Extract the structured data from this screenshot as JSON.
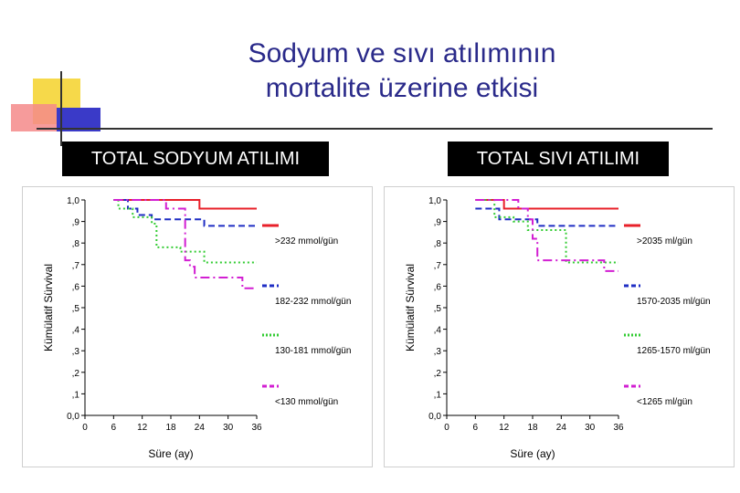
{
  "title": {
    "line1": "Sodyum ve sıvı atılımının",
    "line2": "mortalite üzerine etkisi"
  },
  "colors": {
    "title": "#2a2a8a",
    "series": [
      "#e8202a",
      "#1f2ec4",
      "#33cc33",
      "#d21fd2"
    ]
  },
  "chart_data": [
    {
      "type": "line",
      "panel_label": "TOTAL SODYUM ATILIMI",
      "xlabel": "Süre (ay)",
      "ylabel": "Kümülatif Sürvival",
      "xlim": [
        0,
        36
      ],
      "ylim": [
        0,
        1
      ],
      "x_ticks": [
        "0",
        "6",
        "12",
        "18",
        "24",
        "30",
        "36"
      ],
      "y_ticks": [
        "0,0",
        ",1",
        ",2",
        ",3",
        ",4",
        ",5",
        ",6",
        ",7",
        ",8",
        ",9",
        "1,0"
      ],
      "grid": false,
      "legend_position": "right",
      "series": [
        {
          "name": ">232 mmol/gün",
          "color": "#e8202a",
          "dash": "solid",
          "x": [
            6,
            24,
            36
          ],
          "y": [
            1.0,
            0.96,
            0.96
          ]
        },
        {
          "name": "182-232 mmol/gün",
          "color": "#1f2ec4",
          "dash": "dashed",
          "x": [
            6,
            9,
            11,
            14,
            22,
            25,
            36
          ],
          "y": [
            1.0,
            0.96,
            0.93,
            0.91,
            0.91,
            0.88,
            0.88
          ]
        },
        {
          "name": "130-181 mmol/gün",
          "color": "#33cc33",
          "dash": "dotted",
          "x": [
            6,
            7,
            10,
            14,
            15,
            20,
            25,
            36
          ],
          "y": [
            1.0,
            0.96,
            0.92,
            0.89,
            0.78,
            0.76,
            0.71,
            0.71
          ]
        },
        {
          "name": "<130 mmol/gün",
          "color": "#d21fd2",
          "dash": "dashdot",
          "x": [
            6,
            11,
            17,
            21,
            22,
            23,
            33,
            36
          ],
          "y": [
            1.0,
            1.0,
            0.96,
            0.72,
            0.69,
            0.64,
            0.59,
            0.59
          ]
        }
      ]
    },
    {
      "type": "line",
      "panel_label": "TOTAL SIVI ATILIMI",
      "xlabel": "Süre (ay)",
      "ylabel": "Kümülatif Sürvival",
      "xlim": [
        0,
        36
      ],
      "ylim": [
        0,
        1
      ],
      "x_ticks": [
        "0",
        "6",
        "12",
        "18",
        "24",
        "30",
        "36"
      ],
      "y_ticks": [
        "0,0",
        ",1",
        ",2",
        ",3",
        ",4",
        ",5",
        ",6",
        ",7",
        ",8",
        ",9",
        "1,0"
      ],
      "grid": false,
      "legend_position": "right",
      "series": [
        {
          "name": ">2035 ml/gün",
          "color": "#e8202a",
          "dash": "solid",
          "x": [
            6,
            12,
            36
          ],
          "y": [
            1.0,
            0.96,
            0.96
          ]
        },
        {
          "name": "1570-2035 ml/gün",
          "color": "#1f2ec4",
          "dash": "dashed",
          "x": [
            6,
            8,
            11,
            17,
            19,
            36
          ],
          "y": [
            0.96,
            0.96,
            0.91,
            0.91,
            0.88,
            0.88
          ]
        },
        {
          "name": "1265-1570 ml/gün",
          "color": "#33cc33",
          "dash": "dotted",
          "x": [
            6,
            10,
            14,
            17,
            25,
            36
          ],
          "y": [
            1.0,
            0.92,
            0.9,
            0.86,
            0.71,
            0.71
          ]
        },
        {
          "name": "<1265 ml/gün",
          "color": "#d21fd2",
          "dash": "dashdot",
          "x": [
            6,
            15,
            17,
            18,
            19,
            33,
            36
          ],
          "y": [
            1.0,
            0.96,
            0.91,
            0.82,
            0.72,
            0.67,
            0.67
          ]
        }
      ]
    }
  ]
}
